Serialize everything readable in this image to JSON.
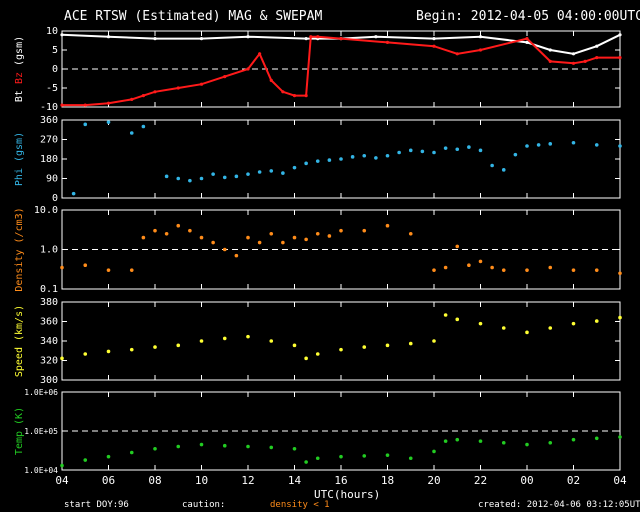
{
  "header": {
    "title": "ACE RTSW (Estimated) MAG & SWEPAM",
    "begin": "Begin: 2012-04-05 04:00:00UTC"
  },
  "footer": {
    "start_doy_label": "start DOY:",
    "start_doy_value": "96",
    "caution_label": "caution:",
    "caution_value": "density < 1",
    "created": "created: 2012-04-06 03:12:05UTC"
  },
  "colors": {
    "bt": "#ffffff",
    "bz": "#ff1a1a",
    "phi": "#33b5e5",
    "density": "#ff8c1a",
    "speed": "#ffff33",
    "temp": "#22cc22",
    "axes": "#ffffff",
    "background": "#000000"
  },
  "chart_data": [
    {
      "type": "line",
      "title": "ACE RTSW (Estimated) MAG & SWEPAM",
      "xlabel": "UTC(hours)",
      "x_ticks": [
        "04",
        "06",
        "08",
        "10",
        "12",
        "14",
        "16",
        "18",
        "20",
        "22",
        "00",
        "02",
        "04"
      ],
      "xlim": [
        0,
        24
      ],
      "ylabel_parts": [
        "Bt",
        "Bz",
        "(gsm)"
      ],
      "ylim": [
        -10,
        10
      ],
      "y_ticks": [
        "10",
        "5",
        "0",
        "-5",
        "-10"
      ],
      "dashed_ref": [
        0
      ],
      "series": [
        {
          "name": "Bt",
          "x": [
            0,
            2,
            4,
            6,
            8,
            10.5,
            11,
            12,
            13.5,
            16,
            18,
            20,
            21,
            22,
            23,
            24
          ],
          "y": [
            9,
            8.5,
            8,
            8,
            8.5,
            8,
            8,
            8,
            8.5,
            8,
            8.5,
            7,
            5,
            4,
            6,
            9
          ]
        },
        {
          "name": "Bz",
          "x": [
            0,
            1,
            2,
            3,
            3.5,
            4,
            5,
            6,
            7,
            8,
            8.5,
            9,
            9.5,
            10,
            10.5,
            10.7,
            11,
            12,
            14,
            16,
            17,
            18,
            20,
            21,
            22,
            22.5,
            23,
            24
          ],
          "y": [
            -9.5,
            -9.5,
            -9,
            -8,
            -7,
            -6,
            -5,
            -4,
            -2,
            0,
            4,
            -3,
            -6,
            -7,
            -7,
            8.5,
            8.5,
            8,
            7,
            6,
            4,
            5,
            8,
            2,
            1.5,
            2,
            3,
            3
          ]
        }
      ]
    },
    {
      "type": "scatter",
      "ylabel": "Phi (gsm)",
      "ylim": [
        0,
        360
      ],
      "y_ticks": [
        "360",
        "270",
        "180",
        "90",
        "0"
      ],
      "series": [
        {
          "name": "Phi",
          "x": [
            0.5,
            1,
            2,
            3,
            3.5,
            4.5,
            5,
            5.5,
            6,
            6.5,
            7,
            7.5,
            8,
            8.5,
            9,
            9.5,
            10,
            10.5,
            11,
            11.5,
            12,
            12.5,
            13,
            13.5,
            14,
            14.5,
            15,
            15.5,
            16,
            16.5,
            17,
            17.5,
            18,
            18.5,
            19,
            19.5,
            20,
            20.5,
            21,
            22,
            23,
            24
          ],
          "y": [
            20,
            340,
            350,
            300,
            330,
            100,
            90,
            80,
            90,
            110,
            95,
            100,
            110,
            120,
            125,
            115,
            140,
            160,
            170,
            175,
            180,
            190,
            195,
            185,
            195,
            210,
            220,
            215,
            210,
            230,
            225,
            235,
            220,
            150,
            130,
            200,
            240,
            245,
            250,
            255,
            245,
            240
          ]
        }
      ]
    },
    {
      "type": "scatter",
      "ylabel": "Density (/cm3)",
      "log_scale": true,
      "ylim": [
        0.1,
        10
      ],
      "y_ticks": [
        "10.0",
        "1.0",
        "0.1"
      ],
      "dashed_ref": [
        1.0
      ],
      "series": [
        {
          "name": "Density",
          "x": [
            0,
            1,
            2,
            3,
            3.5,
            4,
            4.5,
            5,
            5.5,
            6,
            6.5,
            7,
            7.5,
            8,
            8.5,
            9,
            9.5,
            10,
            10.5,
            11,
            11.5,
            12,
            13,
            14,
            15,
            16,
            16.5,
            17,
            17.5,
            18,
            18.5,
            19,
            20,
            21,
            22,
            23,
            24
          ],
          "y": [
            0.35,
            0.4,
            0.3,
            0.3,
            2.0,
            3.0,
            2.5,
            4.0,
            3.0,
            2.0,
            1.5,
            1.0,
            0.7,
            2.0,
            1.5,
            2.5,
            1.5,
            2.0,
            1.8,
            2.5,
            2.2,
            3.0,
            3.0,
            4.0,
            2.5,
            0.3,
            0.35,
            1.2,
            0.4,
            0.5,
            0.35,
            0.3,
            0.3,
            0.35,
            0.3,
            0.3,
            0.25
          ]
        }
      ]
    },
    {
      "type": "scatter",
      "ylabel": "Speed (km/s)",
      "ylim": [
        300,
        390
      ],
      "y_ticks": [
        "380",
        "360",
        "340",
        "320",
        "300"
      ],
      "series": [
        {
          "name": "Speed",
          "x": [
            0,
            1,
            2,
            3,
            4,
            5,
            6,
            7,
            8,
            9,
            10,
            10.5,
            11,
            12,
            13,
            14,
            15,
            16,
            16.5,
            17,
            18,
            19,
            20,
            21,
            22,
            23,
            24
          ],
          "y": [
            325,
            330,
            333,
            335,
            338,
            340,
            345,
            348,
            350,
            345,
            340,
            325,
            330,
            335,
            338,
            340,
            342,
            345,
            375,
            370,
            365,
            360,
            355,
            360,
            365,
            368,
            372
          ]
        }
      ]
    },
    {
      "type": "scatter",
      "ylabel": "Temp (K)",
      "log_scale": true,
      "ylim": [
        10000,
        1000000
      ],
      "y_ticks": [
        "1.0E+06",
        "1.0E+05",
        "1.0E+04"
      ],
      "dashed_ref": [
        100000
      ],
      "series": [
        {
          "name": "Temp",
          "x": [
            0,
            1,
            2,
            3,
            4,
            5,
            6,
            7,
            8,
            9,
            10,
            10.5,
            11,
            12,
            13,
            14,
            15,
            16,
            16.5,
            17,
            18,
            19,
            20,
            21,
            22,
            23,
            24
          ],
          "y": [
            13000,
            18000,
            22000,
            28000,
            35000,
            40000,
            45000,
            42000,
            40000,
            38000,
            35000,
            16000,
            20000,
            22000,
            23000,
            24000,
            20000,
            30000,
            55000,
            60000,
            55000,
            50000,
            45000,
            50000,
            60000,
            65000,
            70000
          ]
        }
      ]
    }
  ]
}
